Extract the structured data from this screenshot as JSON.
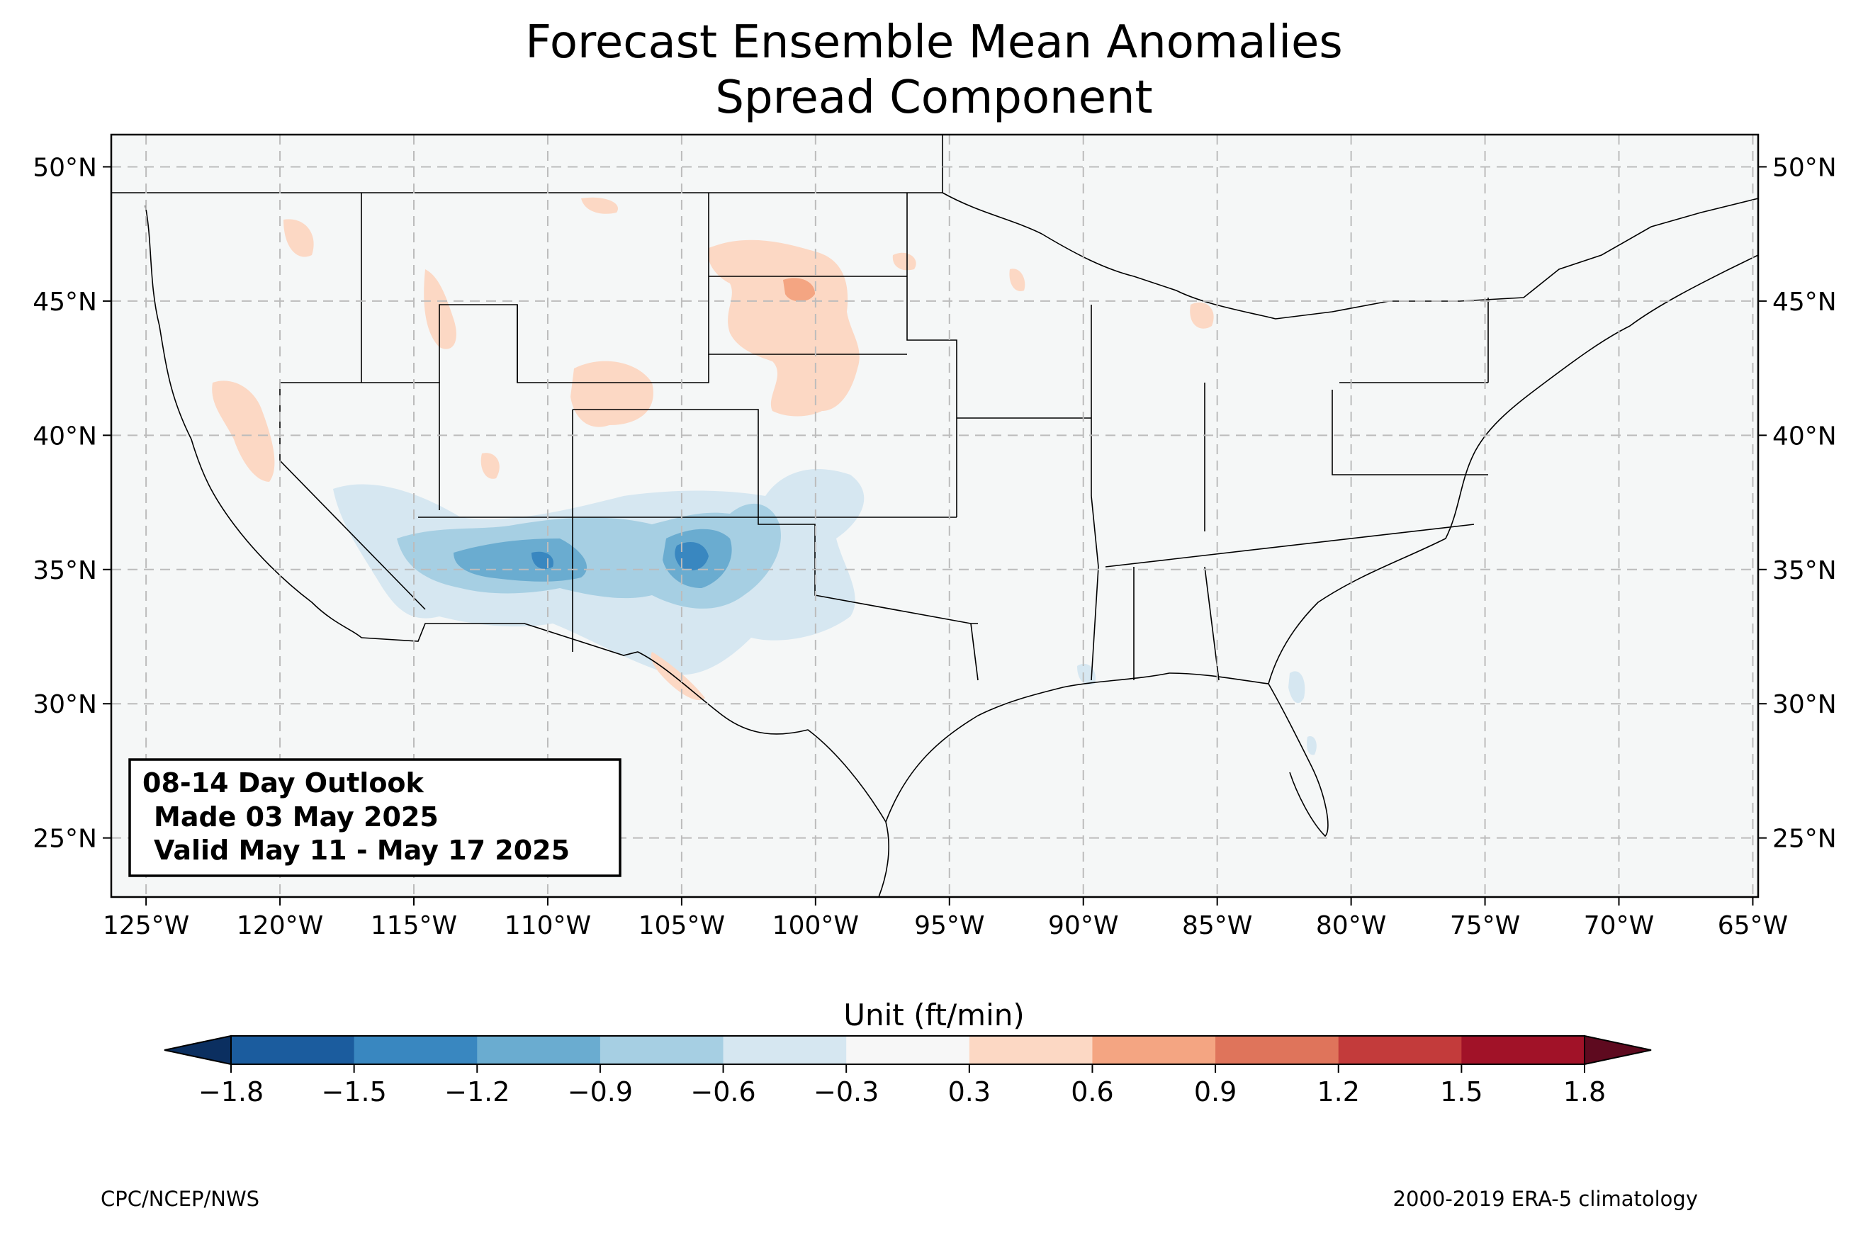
{
  "title": {
    "line1": "Forecast Ensemble Mean Anomalies",
    "line2": "Spread Component"
  },
  "map": {
    "lon_ticks": [
      "125°W",
      "120°W",
      "115°W",
      "110°W",
      "105°W",
      "100°W",
      "95°W",
      "90°W",
      "85°W",
      "80°W",
      "75°W",
      "70°W",
      "65°W"
    ],
    "lat_ticks": [
      "50°N",
      "45°N",
      "40°N",
      "35°N",
      "30°N",
      "25°N"
    ],
    "extent": {
      "lon": [
        -126.3,
        -64.8
      ],
      "lat": [
        22.8,
        51.2
      ]
    },
    "gridlines": true,
    "colors": {
      "land": "#f5f7f7",
      "ocean": "#f5f7f7",
      "border": "#000000",
      "county": "#8c8c8c"
    }
  },
  "info_box": {
    "line1": "08-14 Day Outlook",
    "line2": "Made 03 May 2025",
    "line3": "Valid May 11 - May 17 2025"
  },
  "colorbar": {
    "label": "Unit (ft/min)",
    "ticks": [
      "−1.8",
      "−1.5",
      "−1.2",
      "−0.9",
      "−0.6",
      "−0.3",
      "0.3",
      "0.6",
      "0.9",
      "1.2",
      "1.5",
      "1.8"
    ],
    "colors": [
      "#1b5c9e",
      "#3987c0",
      "#6aacd0",
      "#a6cfe3",
      "#d6e7f1",
      "#f7f7f7",
      "#fcd8c4",
      "#f4a582",
      "#df745b",
      "#c33b3b",
      "#a11228"
    ],
    "extend_low_color": "#0b2f60",
    "extend_high_color": "#5e0a1f"
  },
  "chart_data": {
    "type": "heatmap",
    "description_units": "ft/min",
    "levels": [
      -1.8,
      -1.5,
      -1.2,
      -0.9,
      -0.6,
      -0.3,
      0.3,
      0.6,
      0.9,
      1.2,
      1.5,
      1.8
    ],
    "features": [
      {
        "kind": "negative",
        "lon": -110.0,
        "lat": 35.2,
        "value": -0.9
      },
      {
        "kind": "negative",
        "lon": -103.5,
        "lat": 35.3,
        "value": -1.2
      },
      {
        "kind": "negative",
        "lon": -81.3,
        "lat": 29.5,
        "value": -0.3
      },
      {
        "kind": "positive",
        "lon": -101.0,
        "lat": 45.5,
        "value": 0.6
      },
      {
        "kind": "positive",
        "lon": -120.0,
        "lat": 40.0,
        "value": 0.3
      },
      {
        "kind": "positive",
        "lon": -84.5,
        "lat": 44.5,
        "value": 0.3
      }
    ]
  },
  "footer": {
    "left": "CPC/NCEP/NWS",
    "right": "2000-2019 ERA-5 climatology"
  }
}
